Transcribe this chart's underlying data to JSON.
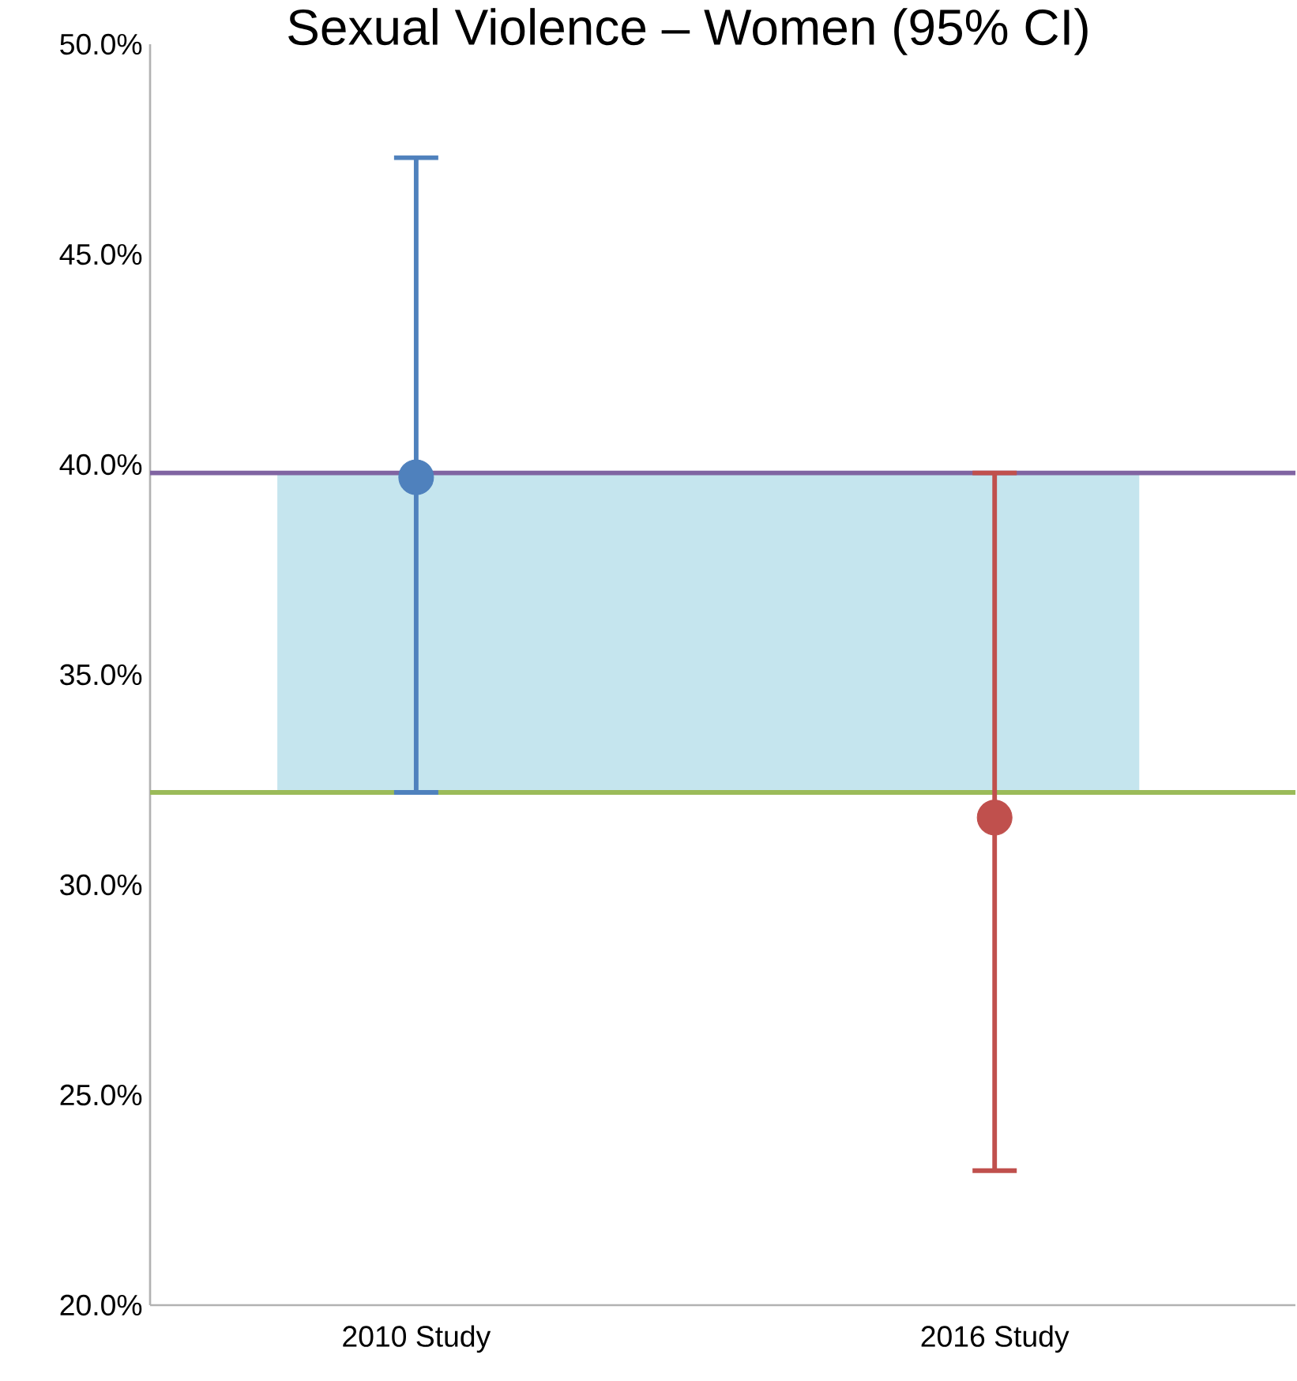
{
  "chart_data": {
    "type": "scatter",
    "title": "Sexual Violence – Women (95% CI)",
    "categories": [
      "2010 Study",
      "2016 Study"
    ],
    "series": [
      {
        "color": "#4f81bd",
        "values": [
          39.7,
          null
        ],
        "errors": [
          [
            32.2,
            47.3
          ],
          null
        ]
      },
      {
        "color": "#c0504d",
        "values": [
          null,
          31.6
        ],
        "errors": [
          null,
          [
            23.2,
            39.8
          ]
        ]
      }
    ],
    "marker": "circle",
    "ylim": [
      20,
      50
    ],
    "yticks": [
      {
        "value": 20,
        "label": "20.0%"
      },
      {
        "value": 25,
        "label": "25.0%"
      },
      {
        "value": 30,
        "label": "30.0%"
      },
      {
        "value": 35,
        "label": "35.0%"
      },
      {
        "value": 40,
        "label": "40.0%"
      },
      {
        "value": 45,
        "label": "45.0%"
      },
      {
        "value": 50,
        "label": "50.0%"
      }
    ],
    "ref_lines": [
      {
        "axis": "y",
        "value": 39.8,
        "color": "#8064a2"
      },
      {
        "axis": "y",
        "value": 32.2,
        "color": "#9bbb59"
      }
    ],
    "bands": [
      {
        "axis": "y",
        "from": 32.2,
        "to": 39.8,
        "color": "#c5e5ee"
      }
    ],
    "grid": false
  }
}
